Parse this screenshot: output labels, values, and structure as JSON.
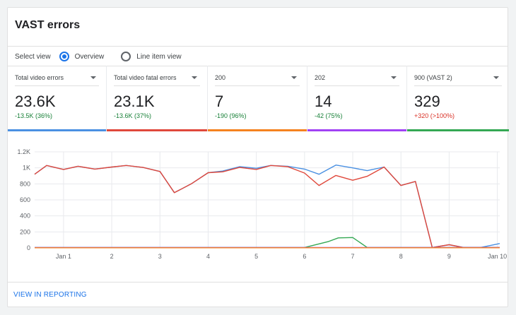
{
  "header": {
    "title": "VAST errors"
  },
  "view": {
    "label": "Select view",
    "options": [
      {
        "label": "Overview",
        "selected": true
      },
      {
        "label": "Line item view",
        "selected": false
      }
    ]
  },
  "metrics": [
    {
      "label": "Total video errors",
      "value": "23.6K",
      "change": "-13.5K (36%)",
      "change_color": "#188038",
      "bar_color": "#4a90e2"
    },
    {
      "label": "Total video fatal errors",
      "value": "23.1K",
      "change": "-13.6K (37%)",
      "change_color": "#188038",
      "bar_color": "#e0483b"
    },
    {
      "label": "200",
      "value": "7",
      "change": "-190 (96%)",
      "change_color": "#188038",
      "bar_color": "#f5821f"
    },
    {
      "label": "202",
      "value": "14",
      "change": "-42 (75%)",
      "change_color": "#188038",
      "bar_color": "#a142f4"
    },
    {
      "label": "900 (VAST 2)",
      "value": "329",
      "change": "+320 (>100%)",
      "change_color": "#d93025",
      "bar_color": "#34a853"
    }
  ],
  "chart_data": {
    "type": "line",
    "x_ticks": [
      "Jan 1",
      "2",
      "3",
      "4",
      "5",
      "6",
      "7",
      "8",
      "9",
      "Jan 10"
    ],
    "y_ticks": [
      "0",
      "200",
      "400",
      "600",
      "800",
      "1K",
      "1.2K"
    ],
    "ylim": [
      0,
      1200
    ],
    "xlim": [
      0.4,
      10.05
    ],
    "grid": true,
    "series": [
      {
        "color": "#4a90e2",
        "x": [
          0.4,
          0.65,
          1.0,
          1.3,
          1.65,
          2.0,
          2.3,
          2.65,
          3.0,
          3.3,
          3.65,
          4.0,
          4.3,
          4.65,
          5.0,
          5.3,
          5.65,
          6.0,
          6.3,
          6.65,
          7.0,
          7.3,
          7.65,
          8.0,
          8.3,
          8.65,
          9.0,
          9.3,
          9.65,
          10.05
        ],
        "y": [
          920,
          1030,
          980,
          1020,
          985,
          1010,
          1030,
          1005,
          955,
          690,
          800,
          940,
          960,
          1015,
          995,
          1030,
          1020,
          985,
          920,
          1035,
          1000,
          965,
          1010,
          780,
          830,
          5,
          40,
          5,
          5,
          55
        ]
      },
      {
        "color": "#e0483b",
        "x": [
          0.4,
          0.65,
          1.0,
          1.3,
          1.65,
          2.0,
          2.3,
          2.65,
          3.0,
          3.3,
          3.65,
          4.0,
          4.3,
          4.65,
          5.0,
          5.3,
          5.65,
          6.0,
          6.3,
          6.65,
          7.0,
          7.3,
          7.65,
          8.0,
          8.3,
          8.65,
          9.0,
          9.3,
          9.65,
          10.05
        ],
        "y": [
          920,
          1030,
          980,
          1020,
          985,
          1010,
          1030,
          1005,
          955,
          690,
          800,
          940,
          950,
          1005,
          980,
          1030,
          1015,
          935,
          780,
          905,
          845,
          895,
          1010,
          780,
          830,
          5,
          40,
          5,
          5,
          5
        ]
      },
      {
        "color": "#34a853",
        "x": [
          0.4,
          6.0,
          6.5,
          6.7,
          7.0,
          7.3,
          10.05
        ],
        "y": [
          5,
          5,
          80,
          125,
          130,
          5,
          5
        ]
      },
      {
        "color": "#a142f4",
        "x": [
          0.4,
          10.05
        ],
        "y": [
          4,
          4
        ]
      },
      {
        "color": "#f5821f",
        "x": [
          0.4,
          10.05
        ],
        "y": [
          2,
          2
        ]
      }
    ]
  },
  "footer": {
    "link": "VIEW IN REPORTING"
  }
}
